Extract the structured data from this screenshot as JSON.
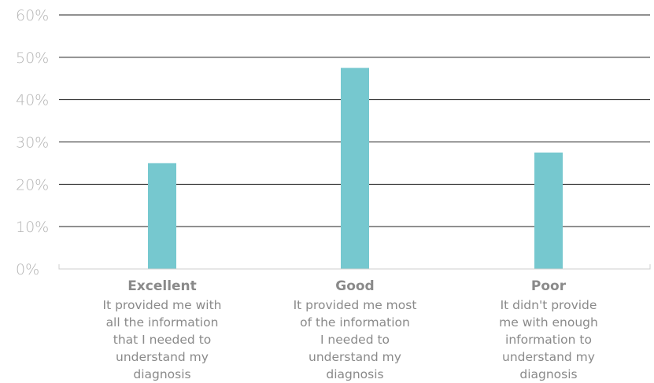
{
  "chart_data": {
    "type": "bar",
    "categories": [
      "Excellent",
      "Good",
      "Poor"
    ],
    "category_descriptions": [
      "It provided me with\nall the information\nthat I needed to\nunderstand my\ndiagnosis",
      "It provided me most\nof the information\nI needed to\nunderstand my\ndiagnosis",
      "It didn't provide\nme with enough\ninformation to\nunderstand my\ndiagnosis"
    ],
    "values": [
      25,
      47.5,
      27.5
    ],
    "unit": "%",
    "yticks": [
      "0%",
      "10%",
      "20%",
      "30%",
      "40%",
      "50%",
      "60%"
    ],
    "ylim": [
      0,
      60
    ],
    "grid": true,
    "bar_color": "#76c8cf",
    "title": "",
    "xlabel": "",
    "ylabel": ""
  }
}
